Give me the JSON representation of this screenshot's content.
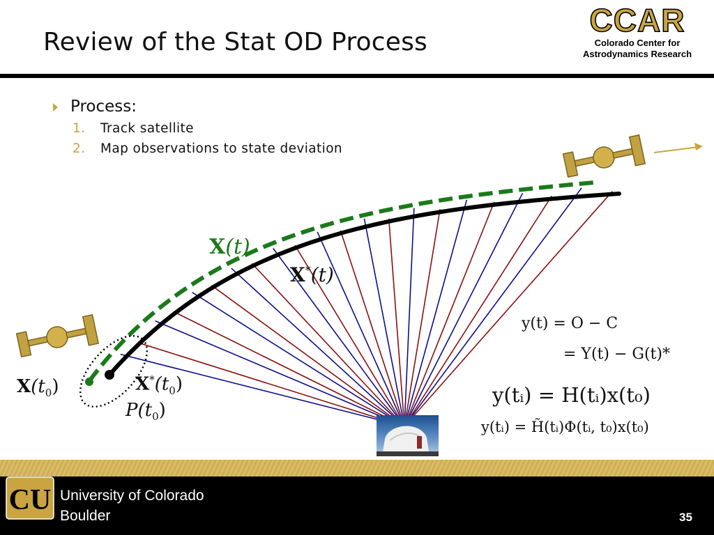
{
  "slide": {
    "title": "Review of the Stat OD Process",
    "page_number": "35"
  },
  "logo": {
    "word": "CCAR",
    "line1": "Colorado Center for",
    "line2": "Astrodynamics Research"
  },
  "bullets": {
    "main": "Process:",
    "items": [
      {
        "num": "1.",
        "text": "Track satellite"
      },
      {
        "num": "2.",
        "text": "Map observations to state deviation"
      }
    ]
  },
  "diagram": {
    "labels": {
      "true_traj_letter": "X",
      "true_traj_arg": "(t)",
      "ref_traj_letter": "X",
      "ref_traj_star": "*",
      "ref_traj_arg": "(t)",
      "init_true_letter": "X",
      "init_true_arg_open": "(t",
      "init_true_sub": "0",
      "init_true_close": ")",
      "init_ref_letter": "X",
      "init_ref_star": "*",
      "init_ref_arg_open": "(t",
      "init_ref_sub": "0",
      "init_ref_close": ")",
      "cov_letter": "P",
      "cov_arg_open": "(t",
      "cov_sub": "0",
      "cov_close": ")"
    },
    "colors": {
      "true_trajectory": "#1a7a1a",
      "reference_trajectory": "#000000",
      "obs_red": "#8b1010",
      "obs_blue": "#0e0e8c",
      "gold": "#c9a441"
    },
    "equations": {
      "eq1_line1": "y(t) = O − C",
      "eq1_line2": "= Y(t) − G(t)*",
      "eq2": "y(tᵢ) = H(tᵢ)x(t₀)",
      "eq3": "y(tᵢ) = H̃(tᵢ)Φ(tᵢ, t₀)x(t₀)"
    }
  },
  "footer": {
    "university_line1": "University of Colorado",
    "university_line2": "Boulder",
    "logo_letters": "CU"
  }
}
